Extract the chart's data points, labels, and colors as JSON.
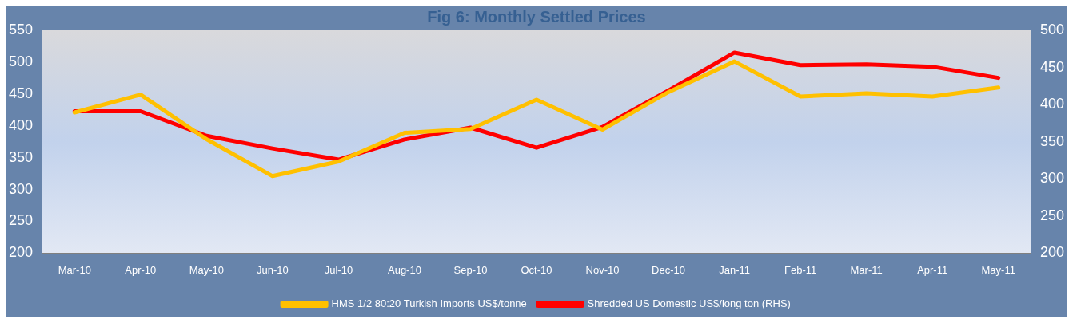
{
  "chart_data": {
    "type": "line",
    "title": "Fig 6: Monthly Settled Prices",
    "categories": [
      "Mar-10",
      "Apr-10",
      "May-10",
      "Jun-10",
      "Jul-10",
      "Aug-10",
      "Sep-10",
      "Oct-10",
      "Nov-10",
      "Dec-10",
      "Jan-11",
      "Feb-11",
      "Mar-11",
      "Apr-11",
      "May-11"
    ],
    "series": [
      {
        "name": "HMS 1/2 80:20 Turkish Imports US$/tonne",
        "color": "#ffc000",
        "values": [
          421,
          449,
          379,
          321,
          344,
          389,
          395,
          441,
          394,
          453,
          501,
          446,
          451,
          446,
          460
        ]
      },
      {
        "name": "Shredded US Domestic US$/long ton (RHS)",
        "color": "#ff0000",
        "axis": "y2",
        "values": [
          391,
          391,
          358,
          341,
          326,
          353,
          369,
          342,
          370,
          419,
          470,
          453,
          454,
          451,
          436
        ]
      }
    ],
    "ylim": [
      200,
      550
    ],
    "yticks": [
      200,
      250,
      300,
      350,
      400,
      450,
      500,
      550
    ],
    "y2lim": [
      200,
      500
    ],
    "y2ticks": [
      200,
      250,
      300,
      350,
      400,
      450,
      500
    ],
    "grid": false,
    "legend": "bottom",
    "marker": "none",
    "line_style": "solid"
  }
}
